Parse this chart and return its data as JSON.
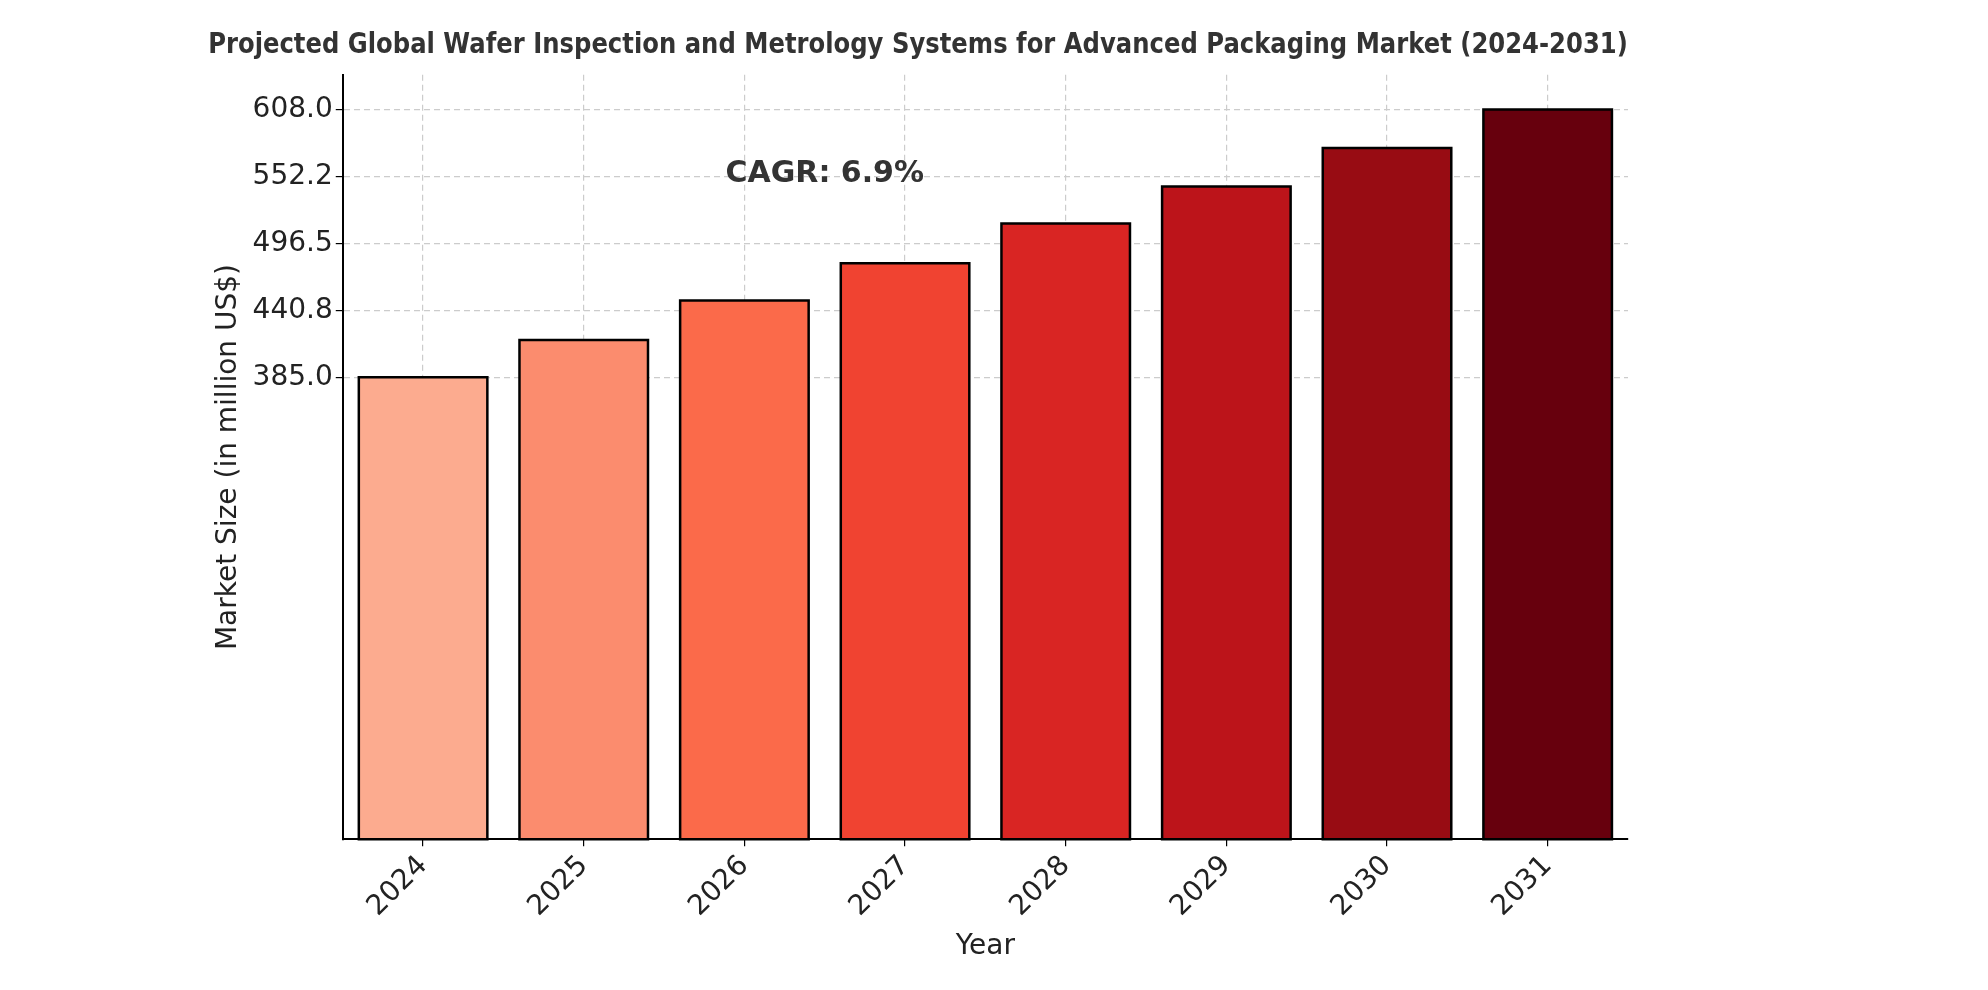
{
  "chart_data": {
    "type": "bar",
    "title": "Projected Global Wafer Inspection and Metrology Systems for Advanced Packaging Market (2024-2031)",
    "xlabel": "Year",
    "ylabel": "Market Size (in million US$)",
    "categories": [
      "2024",
      "2025",
      "2026",
      "2027",
      "2028",
      "2029",
      "2030",
      "2031"
    ],
    "values": [
      385,
      416,
      449,
      480,
      513,
      544,
      576,
      608
    ],
    "colors": [
      "#fcab8f",
      "#fb8c6e",
      "#fb6a4a",
      "#f04331",
      "#d92523",
      "#bc141a",
      "#980c13",
      "#67000d"
    ],
    "ylim": [
      0,
      637
    ],
    "yticks": [
      {
        "value": 385,
        "label": "385.0"
      },
      {
        "value": 440.8,
        "label": "440.8"
      },
      {
        "value": 496.5,
        "label": "496.5"
      },
      {
        "value": 552.2,
        "label": "552.2"
      },
      {
        "value": 608,
        "label": "608.0"
      }
    ],
    "grid": true,
    "annotations": [
      "CAGR: 6.9%"
    ]
  }
}
